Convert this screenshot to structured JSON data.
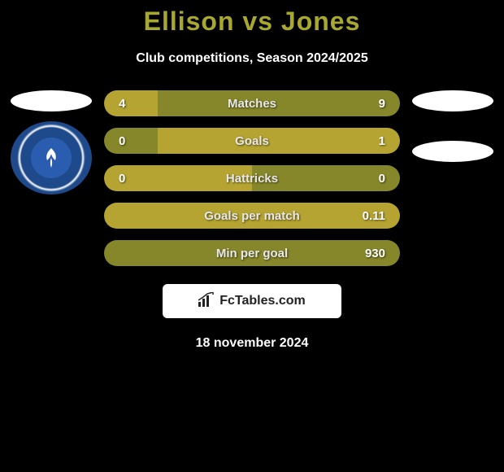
{
  "title": "Ellison vs Jones",
  "subtitle": "Club competitions, Season 2024/2025",
  "colors": {
    "background": "#000000",
    "accent": "#a8a830",
    "bar_primary": "#b5a432",
    "bar_secondary": "#86862a",
    "text": "#ffffff",
    "pill": "#ffffff",
    "badge_bg": "#1e4a8c"
  },
  "left_badge": true,
  "stats": [
    {
      "label": "Matches",
      "left_val": "4",
      "right_val": "9",
      "left_pct": 18,
      "left_color": "#b5a432",
      "right_color": "#86862a"
    },
    {
      "label": "Goals",
      "left_val": "0",
      "right_val": "1",
      "left_pct": 18,
      "left_color": "#86862a",
      "right_color": "#b5a432"
    },
    {
      "label": "Hattricks",
      "left_val": "0",
      "right_val": "0",
      "left_pct": 50,
      "left_color": "#b5a432",
      "right_color": "#86862a"
    },
    {
      "label": "Goals per match",
      "left_val": "",
      "right_val": "0.11",
      "left_pct": 0,
      "left_color": "#86862a",
      "right_color": "#b5a432"
    },
    {
      "label": "Min per goal",
      "left_val": "",
      "right_val": "930",
      "left_pct": 0,
      "left_color": "#b5a432",
      "right_color": "#86862a"
    }
  ],
  "footer": {
    "site": "FcTables.com",
    "date": "18 november 2024"
  }
}
